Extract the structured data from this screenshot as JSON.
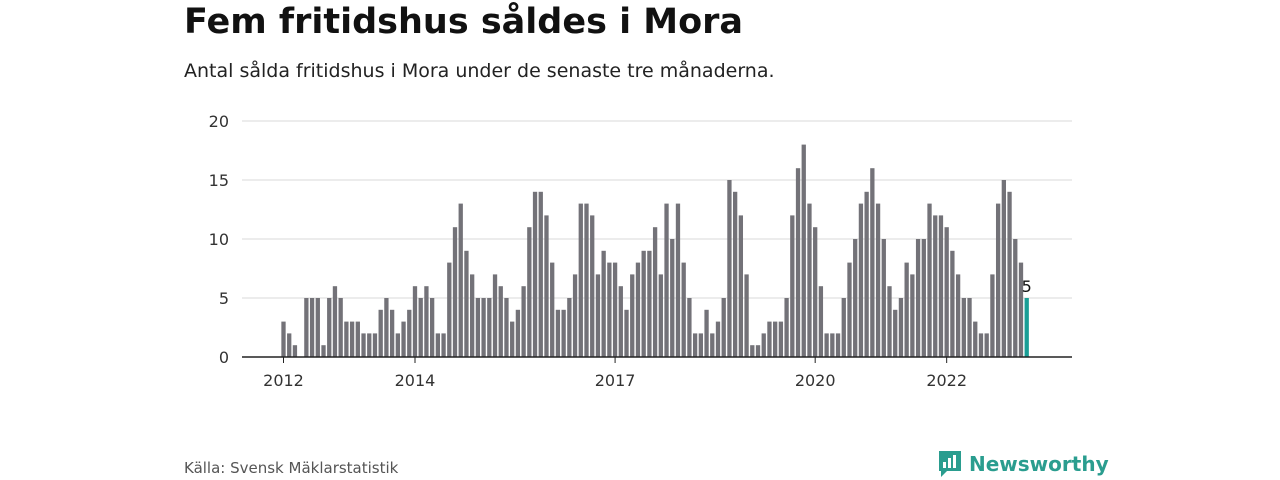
{
  "header": {
    "title": "Fem fritidshus såldes i Mora",
    "subtitle": "Antal sålda fritidshus i Mora under de senaste tre månaderna."
  },
  "footer": {
    "source": "Källa: Svensk Mäklarstatistik",
    "brand": "Newsworthy"
  },
  "colors": {
    "bar": "#737278",
    "highlight": "#1a9e96",
    "grid": "#d9d9d9",
    "axis": "#222222",
    "brand": "#2a9d8f"
  },
  "chart_data": {
    "type": "bar",
    "title": "Fem fritidshus såldes i Mora",
    "subtitle": "Antal sålda fritidshus i Mora under de senaste tre månaderna.",
    "ylim": [
      0,
      20
    ],
    "y_ticks": [
      0,
      5,
      10,
      15,
      20
    ],
    "grid": true,
    "x_tick_labels": [
      {
        "label": "2012",
        "index": 0
      },
      {
        "label": "2014",
        "index": 23
      },
      {
        "label": "2017",
        "index": 58
      },
      {
        "label": "2020",
        "index": 93
      },
      {
        "label": "2022",
        "index": 116
      }
    ],
    "values": [
      3,
      2,
      1,
      0,
      5,
      5,
      5,
      1,
      5,
      6,
      5,
      3,
      3,
      3,
      2,
      2,
      2,
      4,
      5,
      4,
      2,
      3,
      4,
      6,
      5,
      6,
      5,
      2,
      2,
      8,
      11,
      13,
      9,
      7,
      5,
      5,
      5,
      7,
      6,
      5,
      3,
      4,
      6,
      11,
      14,
      14,
      12,
      8,
      4,
      4,
      5,
      7,
      13,
      13,
      12,
      7,
      9,
      8,
      8,
      6,
      4,
      7,
      8,
      9,
      9,
      11,
      7,
      13,
      10,
      13,
      8,
      5,
      2,
      2,
      4,
      2,
      3,
      5,
      15,
      14,
      12,
      7,
      1,
      1,
      2,
      3,
      3,
      3,
      5,
      12,
      16,
      18,
      13,
      11,
      6,
      2,
      2,
      2,
      5,
      8,
      10,
      13,
      14,
      16,
      13,
      10,
      6,
      4,
      5,
      8,
      7,
      10,
      10,
      13,
      12,
      12,
      11,
      9,
      7,
      5,
      5,
      3,
      2,
      2,
      7,
      13,
      15,
      14,
      10,
      8,
      5
    ],
    "highlight_index": 130,
    "highlight_label": "5"
  }
}
